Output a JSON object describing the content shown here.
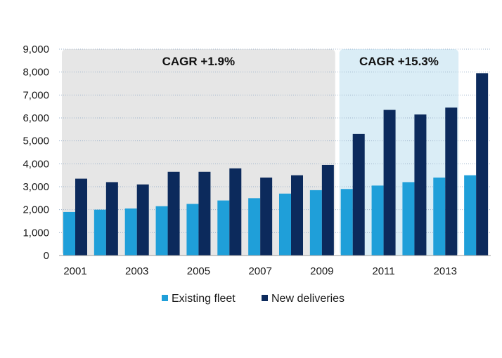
{
  "chart_data": {
    "type": "bar",
    "categories": [
      "2001",
      "2002",
      "2003",
      "2004",
      "2005",
      "2006",
      "2007",
      "2008",
      "2009",
      "2010",
      "2011",
      "2012",
      "2013",
      "2014"
    ],
    "x_tick_labels": [
      "2001",
      "2003",
      "2005",
      "2007",
      "2009",
      "2011",
      "2013"
    ],
    "series": [
      {
        "name": "Existing fleet",
        "color": "#1f9fd9",
        "values": [
          1900,
          2000,
          2050,
          2150,
          2250,
          2400,
          2500,
          2700,
          2850,
          2900,
          3050,
          3200,
          3400,
          3500
        ]
      },
      {
        "name": "New deliveries",
        "color": "#0c2a5c",
        "values": [
          3350,
          3200,
          3100,
          3650,
          3650,
          3800,
          3400,
          3500,
          3950,
          5300,
          6350,
          6150,
          6450,
          7950
        ]
      }
    ],
    "ylim": [
      0,
      9000
    ],
    "yticks": [
      "0",
      "1,000",
      "2,000",
      "3,000",
      "4,000",
      "5,000",
      "6,000",
      "7,000",
      "8,000",
      "9,000"
    ],
    "grid": true,
    "legend_position": "bottom",
    "bands": [
      {
        "label": "CAGR +1.9%",
        "from": "2001",
        "to": "2009",
        "color": "#e6e6e6"
      },
      {
        "label": "CAGR +15.3%",
        "from": "2010",
        "to": "2013",
        "color": "#daedf6"
      }
    ]
  }
}
